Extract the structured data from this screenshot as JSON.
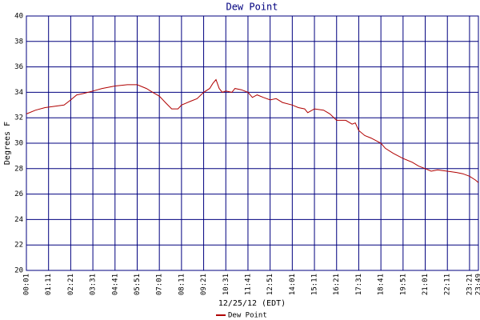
{
  "chart_data": {
    "type": "line",
    "title": "Dew Point",
    "x_label": "12/25/12 (EDT)",
    "y_label": "Degrees F",
    "x": [
      "00:01",
      "00:30",
      "01:00",
      "01:30",
      "02:00",
      "02:21",
      "02:40",
      "03:00",
      "03:31",
      "04:00",
      "04:41",
      "05:20",
      "05:51",
      "06:20",
      "06:40",
      "07:01",
      "07:20",
      "07:40",
      "08:00",
      "08:11",
      "08:40",
      "09:00",
      "09:21",
      "09:40",
      "09:50",
      "10:00",
      "10:10",
      "10:20",
      "10:31",
      "10:50",
      "11:00",
      "11:20",
      "11:41",
      "11:55",
      "12:10",
      "12:30",
      "12:51",
      "13:10",
      "13:30",
      "14:01",
      "14:20",
      "14:40",
      "14:50",
      "15:11",
      "15:40",
      "16:00",
      "16:21",
      "16:50",
      "17:10",
      "17:20",
      "17:31",
      "17:50",
      "18:10",
      "18:41",
      "18:55",
      "19:20",
      "19:51",
      "20:20",
      "20:40",
      "21:01",
      "21:20",
      "21:40",
      "22:11",
      "22:40",
      "23:00",
      "23:21",
      "23:40",
      "23:49"
    ],
    "series": [
      {
        "name": "Dew Point",
        "color": "#b00000",
        "values": [
          32.3,
          32.6,
          32.8,
          32.9,
          33.0,
          33.4,
          33.8,
          33.9,
          34.1,
          34.3,
          34.5,
          34.6,
          34.6,
          34.3,
          34.0,
          33.7,
          33.2,
          32.7,
          32.7,
          33.0,
          33.3,
          33.5,
          34.0,
          34.3,
          34.7,
          35.0,
          34.3,
          34.0,
          34.1,
          34.0,
          34.3,
          34.2,
          34.0,
          33.6,
          33.8,
          33.6,
          33.4,
          33.5,
          33.2,
          33.0,
          32.8,
          32.7,
          32.4,
          32.7,
          32.6,
          32.3,
          31.8,
          31.8,
          31.5,
          31.6,
          31.0,
          30.6,
          30.4,
          30.0,
          29.6,
          29.2,
          28.8,
          28.5,
          28.2,
          28.0,
          27.8,
          27.9,
          27.8,
          27.7,
          27.6,
          27.4,
          27.1,
          26.9
        ]
      }
    ],
    "xlim": [
      "00:01",
      "23:49"
    ],
    "xticks": [
      "00:01",
      "01:11",
      "02:21",
      "03:31",
      "04:41",
      "05:51",
      "07:01",
      "08:11",
      "09:21",
      "10:31",
      "11:41",
      "12:51",
      "14:01",
      "15:11",
      "16:21",
      "17:31",
      "18:41",
      "19:51",
      "21:01",
      "22:11",
      "23:21",
      "23:49"
    ],
    "ylim": [
      20,
      40
    ],
    "yticks": [
      20,
      22,
      24,
      26,
      28,
      30,
      32,
      34,
      36,
      38,
      40
    ],
    "grid": true,
    "grid_color": "#00007f",
    "legend": "bottom"
  }
}
